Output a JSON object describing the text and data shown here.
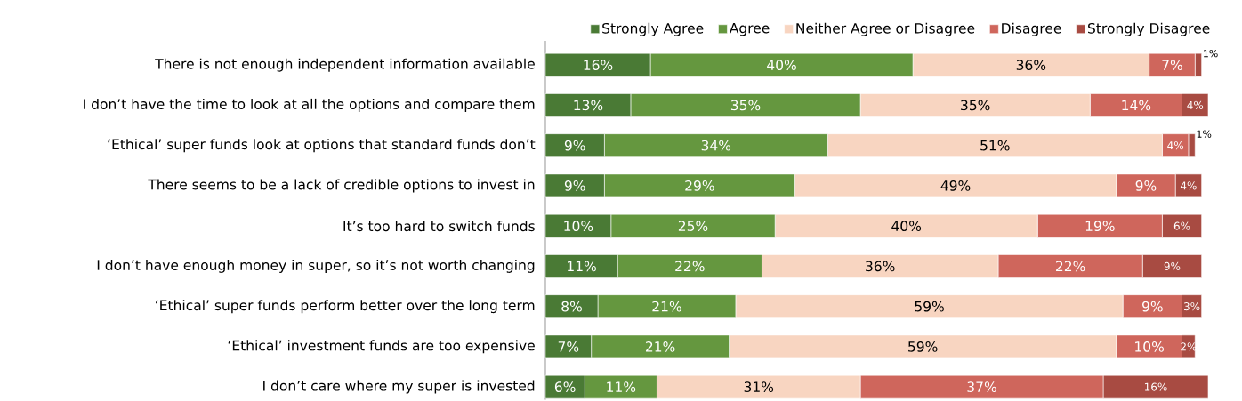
{
  "chart_data": {
    "type": "bar",
    "orientation": "horizontal",
    "stacked": true,
    "legend": "top",
    "categories": [
      "There is not enough independent information available",
      "I don’t have the time to look at all the options and compare them",
      "‘Ethical’ super funds look at options that standard funds don’t",
      "There seems to be a lack of credible options to invest in",
      "It’s too hard to switch funds",
      "I don’t have enough money in super, so it’s not worth changing",
      "‘Ethical’ super funds perform better over the long term",
      "‘Ethical’ investment funds are too expensive",
      "I don’t care where my super is invested"
    ],
    "series": [
      {
        "name": "Strongly Agree",
        "color": "#4a7a35",
        "values": [
          16,
          13,
          9,
          9,
          10,
          11,
          8,
          7,
          6
        ],
        "value_labels": [
          "16%",
          "13%",
          "9%",
          "9%",
          "10%",
          "11%",
          "8%",
          "7%",
          "6%"
        ]
      },
      {
        "name": "Agree",
        "color": "#65973f",
        "values": [
          40,
          35,
          34,
          29,
          25,
          22,
          21,
          21,
          11
        ],
        "value_labels": [
          "40%",
          "35%",
          "34%",
          "29%",
          "25%",
          "22%",
          "21%",
          "21%",
          "11%"
        ]
      },
      {
        "name": "Neither Agree or Disagree",
        "color": "#f8d5c1",
        "values": [
          36,
          35,
          51,
          49,
          40,
          36,
          59,
          59,
          31
        ],
        "value_labels": [
          "36%",
          "35%",
          "51%",
          "49%",
          "40%",
          "36%",
          "59%",
          "59%",
          "31%"
        ]
      },
      {
        "name": "Disagree",
        "color": "#cf665c",
        "values": [
          7,
          14,
          4,
          9,
          19,
          22,
          9,
          10,
          37
        ],
        "value_labels": [
          "7%",
          "14%",
          "4%",
          "9%",
          "19%",
          "22%",
          "9%",
          "10%",
          "37%"
        ]
      },
      {
        "name": "Strongly Disagree",
        "color": "#a84b42",
        "values": [
          1,
          4,
          1,
          4,
          6,
          9,
          3,
          2,
          16
        ],
        "value_labels": [
          "1%",
          "4%",
          "1%",
          "4%",
          "6%",
          "9%",
          "3%",
          "2%",
          "16%"
        ]
      }
    ]
  }
}
